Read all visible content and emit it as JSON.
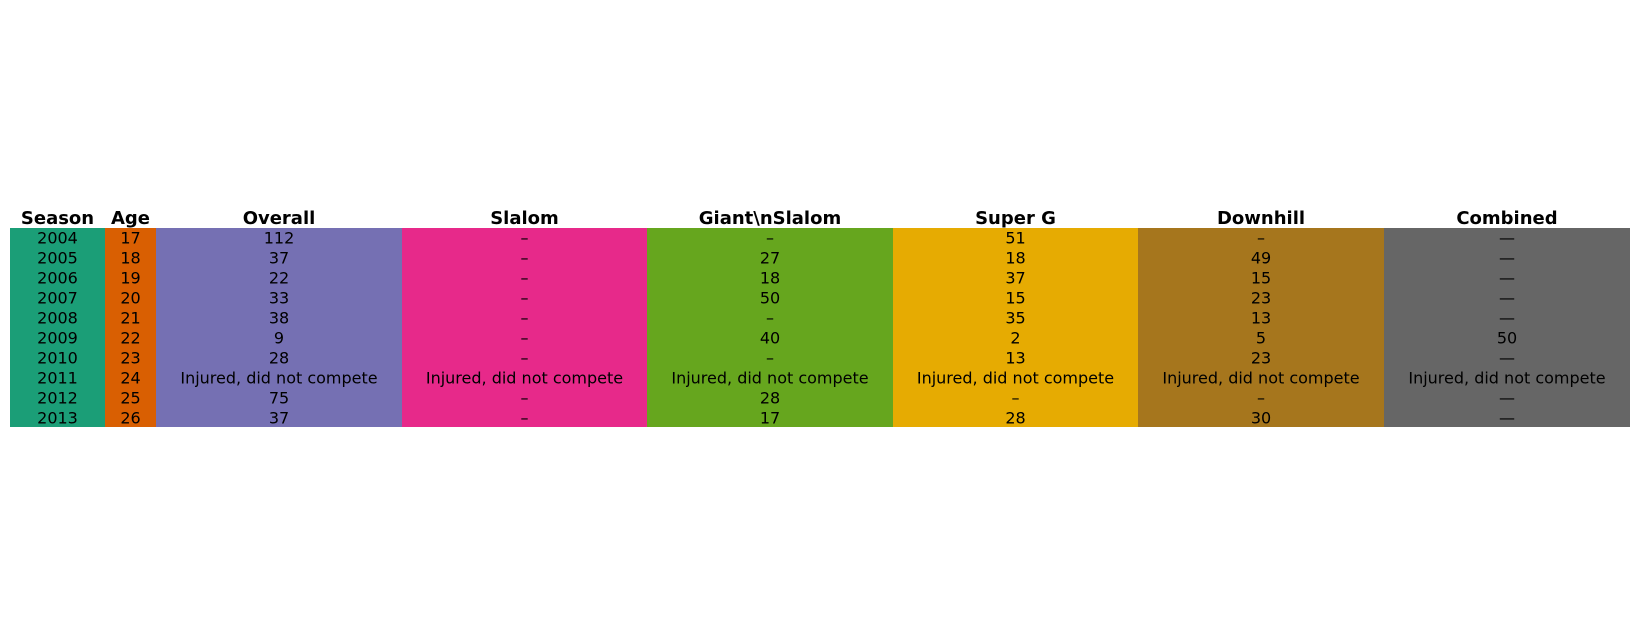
{
  "chart_data": {
    "type": "table",
    "columns": [
      {
        "header": "Season",
        "color": "#1b9e77"
      },
      {
        "header": "Age",
        "color": "#d95f02"
      },
      {
        "header": "Overall",
        "color": "#7570b3"
      },
      {
        "header": "Slalom",
        "color": "#e7298a"
      },
      {
        "header": "Giant\\nSlalom",
        "color": "#66a61e"
      },
      {
        "header": "Super G",
        "color": "#e6ab02"
      },
      {
        "header": "Downhill",
        "color": "#a6761d"
      },
      {
        "header": "Combined",
        "color": "#666666"
      }
    ],
    "rows": [
      [
        "2004",
        "17",
        "112",
        "–",
        "–",
        "51",
        "–",
        "—"
      ],
      [
        "2005",
        "18",
        "37",
        "–",
        "27",
        "18",
        "49",
        "—"
      ],
      [
        "2006",
        "19",
        "22",
        "–",
        "18",
        "37",
        "15",
        "—"
      ],
      [
        "2007",
        "20",
        "33",
        "–",
        "50",
        "15",
        "23",
        "—"
      ],
      [
        "2008",
        "21",
        "38",
        "–",
        "–",
        "35",
        "13",
        "—"
      ],
      [
        "2009",
        "22",
        "9",
        "–",
        "40",
        "2",
        "5",
        "50"
      ],
      [
        "2010",
        "23",
        "28",
        "–",
        "–",
        "13",
        "23",
        "—"
      ],
      [
        "2011",
        "24",
        "Injured, did not compete",
        "Injured, did not compete",
        "Injured, did not compete",
        "Injured, did not compete",
        "Injured, did not compete",
        "Injured, did not compete"
      ],
      [
        "2012",
        "25",
        "75",
        "–",
        "28",
        "–",
        "–",
        "—"
      ],
      [
        "2013",
        "26",
        "37",
        "–",
        "17",
        "28",
        "30",
        "—"
      ]
    ]
  }
}
